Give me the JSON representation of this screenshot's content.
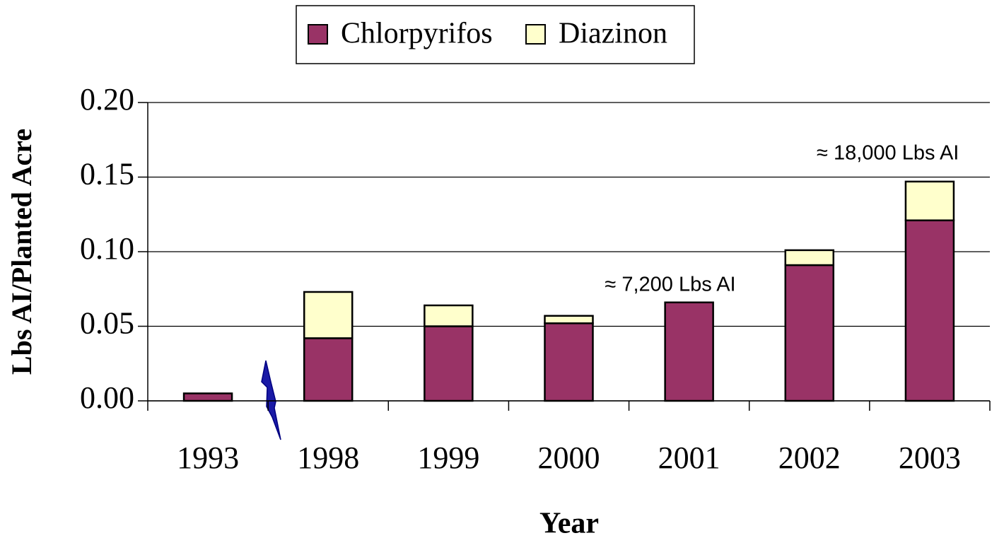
{
  "chart_data": {
    "type": "stacked_bar",
    "y_label": "Lbs AI/Planted Acre",
    "x_label": "Year",
    "categories": [
      "1993",
      "1998",
      "1999",
      "2000",
      "2001",
      "2002",
      "2003"
    ],
    "series": [
      {
        "name": "Chlorpyrifos",
        "color": "#993366",
        "values": [
          0.005,
          0.042,
          0.05,
          0.052,
          0.066,
          0.091,
          0.121
        ]
      },
      {
        "name": "Diazinon",
        "color": "#ffffcc",
        "values": [
          0,
          0.031,
          0.014,
          0.005,
          0,
          0.01,
          0.026
        ]
      }
    ],
    "ylim": [
      0,
      0.2
    ],
    "yticks": [
      {
        "value": 0,
        "label": "0.00"
      },
      {
        "value": 0.05,
        "label": "0.05"
      },
      {
        "value": 0.1,
        "label": "0.10"
      },
      {
        "value": 0.15,
        "label": "0.15"
      },
      {
        "value": 0.2,
        "label": "0.20"
      }
    ],
    "grid": true,
    "legend": "top",
    "annotations": [
      "≈ 7,200 Lbs AI",
      "≈ 18,000 Lbs AI"
    ]
  }
}
